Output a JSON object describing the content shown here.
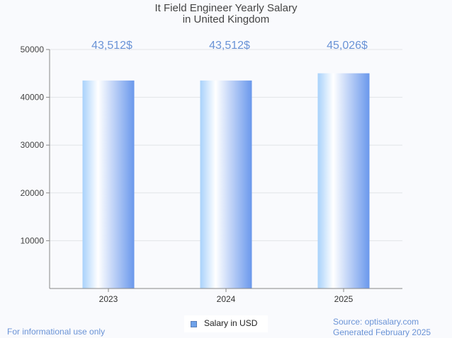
{
  "chart_data": {
    "type": "bar",
    "title_line1": "It Field Engineer Yearly Salary",
    "title_line2": "in United Kingdom",
    "categories": [
      "2023",
      "2024",
      "2025"
    ],
    "values": [
      43512,
      43512,
      45026
    ],
    "data_labels": [
      "43,512$",
      "43,512$",
      "45,026$"
    ],
    "ylim": [
      0,
      50000
    ],
    "yticks": [
      10000,
      20000,
      30000,
      40000,
      50000
    ],
    "ytick_labels": [
      "10000",
      "20000",
      "30000",
      "40000",
      "50000"
    ],
    "xlabel": "",
    "ylabel": "",
    "grid": true,
    "legend": {
      "position": "bottom-center",
      "entries": [
        "Salary in USD"
      ]
    },
    "colors": {
      "bar_left": "#a8d2fb",
      "bar_mid": "#ffffff",
      "bar_right": "#6a98ec",
      "data_label": "#6a93d6",
      "grid": "#e2e4e8",
      "axis": "#888888"
    }
  },
  "footer": {
    "disclaimer": "For informational use only",
    "source": "Source: optisalary.com",
    "generated": "Generated February 2025"
  }
}
